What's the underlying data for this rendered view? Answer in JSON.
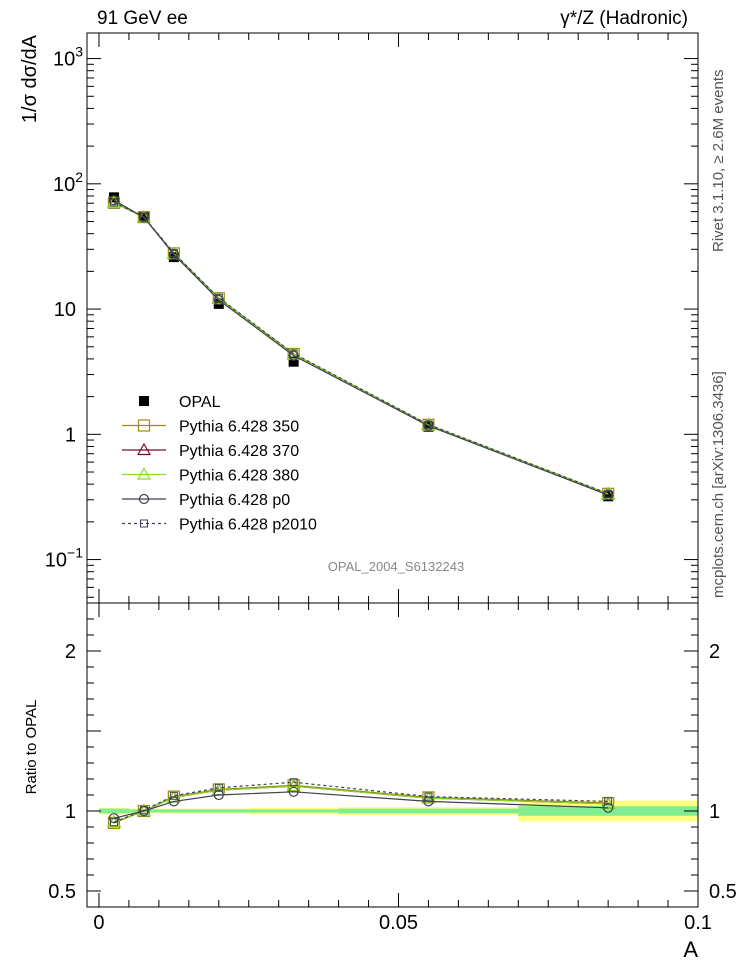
{
  "header": {
    "left_title": "91 GeV ee",
    "right_title": "γ*/Z (Hadronic)"
  },
  "side_labels": {
    "rivet": "Rivet 3.1.10, ≥ 2.6M events",
    "mcplots": "mcplots.cern.ch [arXiv:1306.3436]"
  },
  "watermark": "OPAL_2004_S6132243",
  "chart_data": [
    {
      "type": "line",
      "panel": "main",
      "ylabel": "1/σ dσ/dA",
      "yscale": "log",
      "ylim": [
        0.045,
        1600
      ],
      "xlim": [
        -0.002,
        0.1
      ],
      "y_ticks": [
        {
          "v": 0.1,
          "label": "10",
          "sup": "−1"
        },
        {
          "v": 1,
          "label": "1",
          "sup": ""
        },
        {
          "v": 10,
          "label": "10",
          "sup": ""
        },
        {
          "v": 100,
          "label": "10",
          "sup": "2"
        },
        {
          "v": 1000,
          "label": "10",
          "sup": "3"
        }
      ],
      "legend_position": "lower-left",
      "x": [
        0.0025,
        0.0075,
        0.0125,
        0.02,
        0.0325,
        0.055,
        0.085
      ],
      "series": [
        {
          "name": "OPAL",
          "color": "#000000",
          "marker": "filled-square",
          "line": "none",
          "values": [
            78,
            54,
            26,
            11,
            3.8,
            1.15,
            0.32
          ]
        },
        {
          "name": "Pythia 6.428 350",
          "color": "#9a8a1a",
          "marker": "open-square",
          "line": "solid",
          "values": [
            70.5,
            54.2,
            27.8,
            12.2,
            4.38,
            1.19,
            0.335
          ]
        },
        {
          "name": "Pythia 6.428 370",
          "color": "#7a0a2a",
          "marker": "open-triangle",
          "line": "solid",
          "values": [
            71,
            54.1,
            27.6,
            12.1,
            4.35,
            1.19,
            0.334
          ]
        },
        {
          "name": "Pythia 6.428 380",
          "color": "#80e020",
          "marker": "open-triangle",
          "line": "solid",
          "values": [
            71,
            54.1,
            27.6,
            12.1,
            4.35,
            1.19,
            0.334
          ]
        },
        {
          "name": "Pythia 6.428 p0",
          "color": "#404050",
          "marker": "open-circle",
          "line": "solid",
          "values": [
            74,
            54.0,
            27.2,
            11.8,
            4.25,
            1.17,
            0.327
          ]
        },
        {
          "name": "Pythia 6.428 p2010",
          "color": "#404050",
          "marker": "open-square-small",
          "line": "dashed",
          "values": [
            71,
            54.3,
            28.0,
            12.3,
            4.42,
            1.2,
            0.336
          ]
        }
      ]
    },
    {
      "type": "line",
      "panel": "ratio",
      "ylabel": "Ratio to OPAL",
      "xlabel": "A",
      "ylim": [
        0.4,
        2.3
      ],
      "xlim": [
        -0.002,
        0.1
      ],
      "y_ticks": [
        {
          "v": 0.5,
          "label": "0.5"
        },
        {
          "v": 1,
          "label": "1"
        },
        {
          "v": 2,
          "label": "2"
        }
      ],
      "x_ticks": [
        {
          "v": 0,
          "label": "0"
        },
        {
          "v": 0.05,
          "label": "0.05"
        },
        {
          "v": 0.1,
          "label": "0.1"
        }
      ],
      "x": [
        0.0025,
        0.0075,
        0.0125,
        0.02,
        0.0325,
        0.055,
        0.085
      ],
      "bands": [
        {
          "x0": 0.0,
          "x1": 0.005,
          "stat": [
            0.985,
            1.015
          ],
          "total": [
            0.98,
            1.02
          ]
        },
        {
          "x0": 0.005,
          "x1": 0.01,
          "stat": [
            0.99,
            1.01
          ],
          "total": [
            0.985,
            1.015
          ]
        },
        {
          "x0": 0.01,
          "x1": 0.015,
          "stat": [
            0.99,
            1.01
          ],
          "total": [
            0.985,
            1.015
          ]
        },
        {
          "x0": 0.015,
          "x1": 0.025,
          "stat": [
            0.99,
            1.01
          ],
          "total": [
            0.985,
            1.015
          ]
        },
        {
          "x0": 0.025,
          "x1": 0.04,
          "stat": [
            0.99,
            1.01
          ],
          "total": [
            0.98,
            1.02
          ]
        },
        {
          "x0": 0.04,
          "x1": 0.07,
          "stat": [
            0.985,
            1.015
          ],
          "total": [
            0.975,
            1.025
          ]
        },
        {
          "x0": 0.07,
          "x1": 0.1,
          "stat": [
            0.97,
            1.03
          ],
          "total": [
            0.935,
            1.065
          ]
        }
      ],
      "series": [
        {
          "name": "Pythia 6.428 350",
          "values": [
            0.925,
            1.0,
            1.09,
            1.135,
            1.16,
            1.085,
            1.05
          ]
        },
        {
          "name": "Pythia 6.428 370",
          "values": [
            0.93,
            1.0,
            1.085,
            1.13,
            1.155,
            1.08,
            1.045
          ]
        },
        {
          "name": "Pythia 6.428 380",
          "values": [
            0.93,
            1.0,
            1.085,
            1.13,
            1.155,
            1.08,
            1.045
          ]
        },
        {
          "name": "Pythia 6.428 p0",
          "values": [
            0.955,
            1.0,
            1.06,
            1.1,
            1.12,
            1.06,
            1.02
          ]
        },
        {
          "name": "Pythia 6.428 p2010",
          "values": [
            0.93,
            1.005,
            1.095,
            1.145,
            1.18,
            1.09,
            1.06
          ]
        }
      ]
    }
  ]
}
